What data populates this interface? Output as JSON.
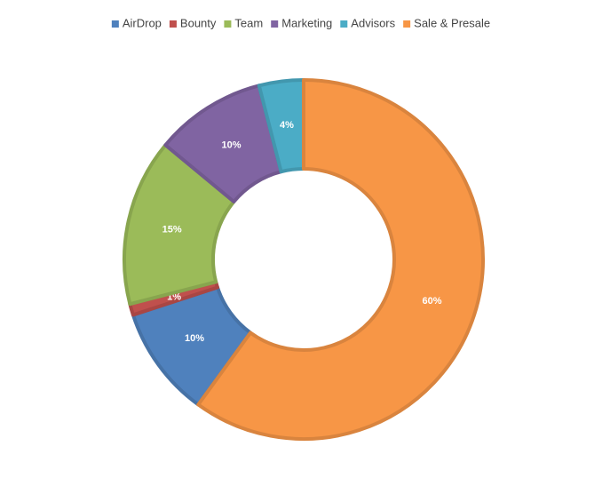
{
  "chart_data": {
    "type": "donut",
    "series": [
      {
        "name": "AirDrop",
        "color": "#4f81bd",
        "values": [
          10
        ],
        "value_labels": [
          "10%"
        ]
      },
      {
        "name": "Bounty",
        "color": "#c0504d",
        "values": [
          1
        ],
        "value_labels": [
          "1%"
        ]
      },
      {
        "name": "Team",
        "color": "#9bbb59",
        "values": [
          15
        ],
        "value_labels": [
          "15%"
        ]
      },
      {
        "name": "Marketing",
        "color": "#8064a2",
        "values": [
          10
        ],
        "value_labels": [
          "10%"
        ]
      },
      {
        "name": "Advisors",
        "color": "#4bacc6",
        "values": [
          4
        ],
        "value_labels": [
          "4%"
        ]
      },
      {
        "name": "Sale & Presale",
        "color": "#f79646",
        "values": [
          60
        ],
        "value_labels": [
          "60%"
        ]
      }
    ],
    "legend": "top"
  }
}
